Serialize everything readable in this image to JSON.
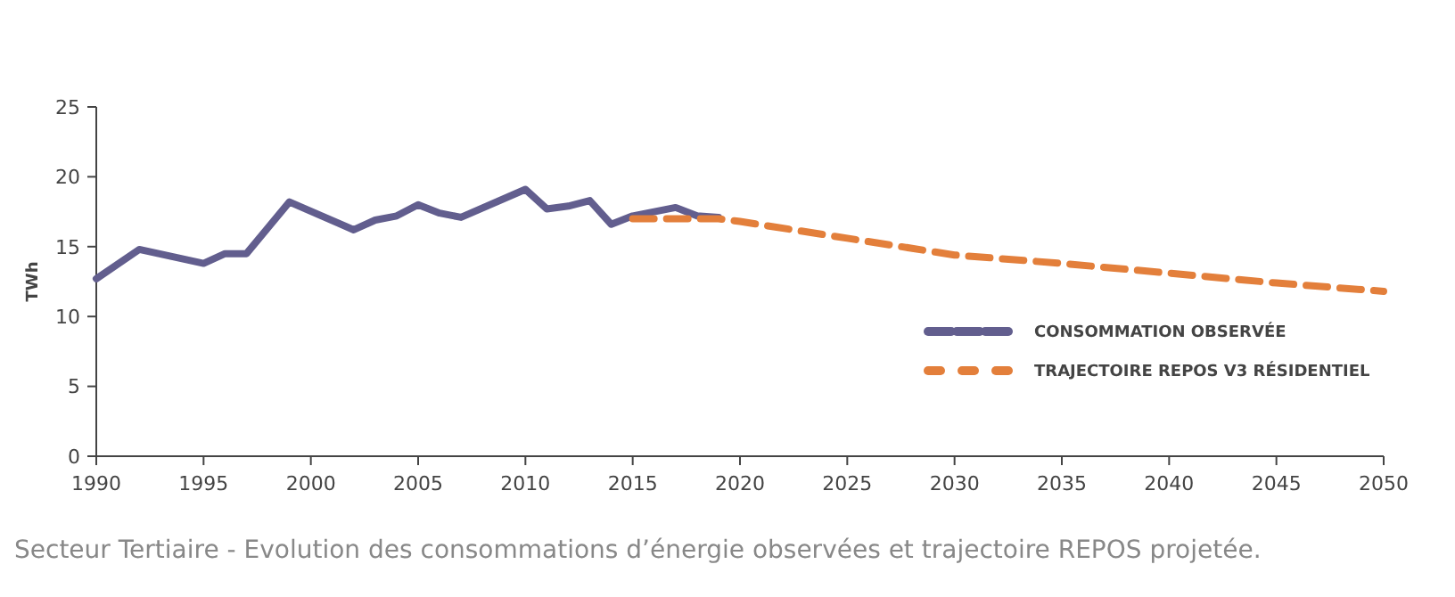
{
  "chart_data": {
    "type": "line",
    "ylabel": "TWh",
    "xlim": [
      1990,
      2050
    ],
    "xticks": [
      1990,
      1995,
      2000,
      2005,
      2010,
      2015,
      2020,
      2025,
      2030,
      2035,
      2040,
      2045,
      2050
    ],
    "ylim": [
      0,
      25
    ],
    "yticks": [
      0,
      5,
      10,
      15,
      20,
      25
    ],
    "grid": false,
    "legend": "right",
    "annotations": [
      "Secteur Tertiaire - Evolution des consommations d’énergie observées et trajectoire REPOS projetée."
    ],
    "series": [
      {
        "name": "CONSOMMATION OBSERVÉE",
        "color": "#625e8e",
        "line_style": "solid",
        "x": [
          1990,
          1992,
          1995,
          1996,
          1997,
          1999,
          2002,
          2003,
          2004,
          2005,
          2006,
          2007,
          2010,
          2011,
          2012,
          2013,
          2014,
          2015,
          2017,
          2018,
          2019
        ],
        "values": [
          12.7,
          14.8,
          13.8,
          14.5,
          14.5,
          18.2,
          16.2,
          16.9,
          17.2,
          18.0,
          17.4,
          17.1,
          19.1,
          17.7,
          17.9,
          18.3,
          16.6,
          17.2,
          17.8,
          17.2,
          17.1
        ]
      },
      {
        "name": "TRAJECTOIRE REPOS V3 RÉSIDENTIEL",
        "color": "#e37f3b",
        "line_style": "dashed",
        "x": [
          2015,
          2019,
          2020,
          2025,
          2030,
          2035,
          2040,
          2045,
          2050
        ],
        "values": [
          17.0,
          17.0,
          16.8,
          15.6,
          14.4,
          13.8,
          13.1,
          12.4,
          11.8
        ]
      }
    ]
  }
}
